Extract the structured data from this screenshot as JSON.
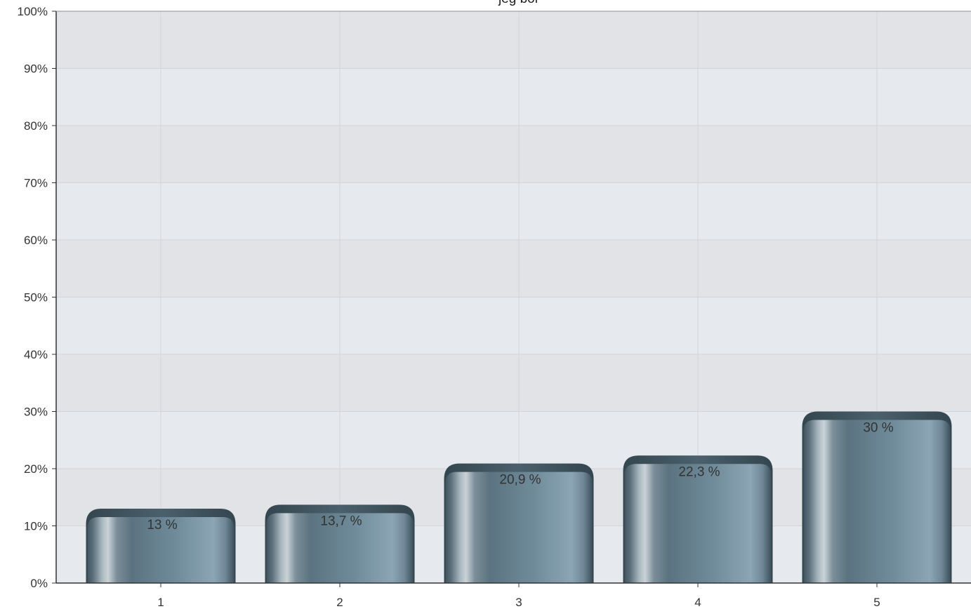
{
  "chart_data": {
    "type": "bar",
    "title": "jeg bor",
    "categories": [
      "1",
      "2",
      "3",
      "4",
      "5"
    ],
    "values": [
      13,
      13.7,
      20.9,
      22.3,
      30
    ],
    "data_labels": [
      "13 %",
      "13,7 %",
      "20,9 %",
      "22,3 %",
      "30 %"
    ],
    "ylim": [
      0,
      100
    ],
    "y_ticks": [
      "0%",
      "10%",
      "20%",
      "30%",
      "40%",
      "50%",
      "60%",
      "70%",
      "80%",
      "90%",
      "100%"
    ],
    "grid": true,
    "legend": "none",
    "colors": {
      "bar_dark": "#3f5663",
      "bar_mid": "#637f8f",
      "bar_light": "#8aa3b2",
      "bar_highlight": "#c6d1d7",
      "band_a": "#e6e9ed",
      "band_b": "#e2e3e6",
      "grid": "#d2d4d8",
      "axis": "#333333"
    }
  }
}
